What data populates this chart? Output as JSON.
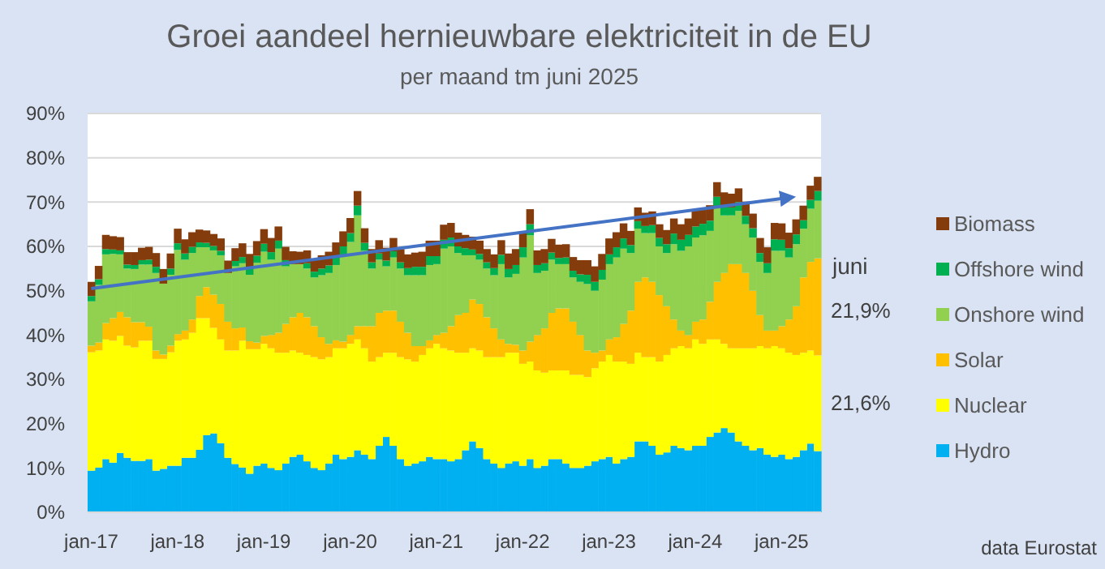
{
  "chart_data": {
    "type": "bar",
    "stacked": true,
    "title": "Groei aandeel hernieuwbare elektriciteit in de EU",
    "subtitle": "per maand tm juni 2025",
    "categories": [
      "jan-17",
      null,
      null,
      null,
      null,
      null,
      null,
      null,
      null,
      null,
      null,
      null,
      "jan-18",
      null,
      null,
      null,
      null,
      null,
      null,
      null,
      null,
      null,
      null,
      null,
      "jan-19",
      null,
      null,
      null,
      null,
      null,
      null,
      null,
      null,
      null,
      null,
      null,
      "jan-20",
      null,
      null,
      null,
      null,
      null,
      null,
      null,
      null,
      null,
      null,
      null,
      "jan-21",
      null,
      null,
      null,
      null,
      null,
      null,
      null,
      null,
      null,
      null,
      null,
      "jan-22",
      null,
      null,
      null,
      null,
      null,
      null,
      null,
      null,
      null,
      null,
      null,
      "jan-23",
      null,
      null,
      null,
      null,
      null,
      null,
      null,
      null,
      null,
      null,
      null,
      "jan-24",
      null,
      null,
      null,
      null,
      null,
      null,
      null,
      null,
      null,
      null,
      null,
      "jan-25",
      null,
      null,
      null,
      null,
      null
    ],
    "series": [
      {
        "name": "Hydro",
        "color": "#00b0f0",
        "values": [
          9.4,
          10.1,
          12,
          11.2,
          13.4,
          12.3,
          11.6,
          11.6,
          12,
          9.4,
          9.8,
          10.5,
          10.5,
          12.3,
          12.3,
          14.1,
          17.4,
          17.8,
          15.6,
          12.3,
          10.9,
          10.1,
          8.7,
          10.5,
          11,
          10,
          9.5,
          11,
          12.5,
          13,
          11.5,
          10,
          9.5,
          11,
          13,
          12,
          12.5,
          14,
          13,
          12,
          15,
          17,
          15,
          12,
          10.5,
          11,
          11.5,
          12.5,
          12,
          12,
          11.5,
          12,
          14,
          16,
          14.5,
          12,
          11,
          10,
          11,
          11.5,
          10.5,
          12,
          10,
          10.5,
          12,
          12,
          11,
          10,
          10,
          10.5,
          11.5,
          12,
          12.5,
          11,
          12,
          12.5,
          16,
          16,
          15,
          13,
          13.5,
          15,
          14.5,
          14,
          15,
          15,
          17,
          18,
          19,
          18,
          16,
          15,
          14,
          14.5,
          13,
          12.5,
          13,
          12,
          12.5,
          14,
          15.5,
          13.8
        ]
      },
      {
        "name": "Nuclear",
        "color": "#ffff00",
        "values": [
          26.7,
          26.4,
          27,
          27.5,
          26.4,
          25.3,
          25.6,
          27.1,
          26.7,
          25.2,
          24.8,
          25.6,
          28.2,
          26.7,
          28.2,
          29.7,
          26.4,
          23.8,
          23.4,
          24.2,
          25.6,
          28.6,
          28.1,
          26.3,
          27,
          27,
          26.5,
          25,
          24,
          23,
          24,
          25,
          25,
          24,
          24,
          25,
          25.5,
          25,
          24,
          22,
          20,
          19,
          21,
          23,
          24,
          23,
          24,
          24.5,
          26,
          25,
          25,
          24,
          22,
          21,
          22,
          23,
          24,
          25,
          25,
          24.5,
          23,
          22,
          22,
          21,
          20,
          20,
          21,
          21,
          21,
          20,
          21,
          22,
          23,
          23,
          22,
          21,
          20,
          19,
          20,
          21,
          22,
          22,
          23,
          23,
          24,
          23,
          22,
          21,
          19,
          19,
          21,
          22,
          23,
          23,
          24,
          25,
          24,
          24,
          23,
          22,
          21,
          21.6
        ]
      },
      {
        "name": "Solar",
        "color": "#ffc000",
        "values": [
          1.5,
          1.8,
          3.7,
          5.1,
          5.4,
          6.4,
          5.7,
          4.2,
          3.2,
          1.9,
          1,
          1.5,
          1.5,
          2,
          3,
          5,
          7,
          7.5,
          8,
          6.5,
          5,
          3,
          1.8,
          1.5,
          1.8,
          3,
          4.5,
          6.5,
          7.5,
          9,
          8.5,
          7,
          5,
          3,
          1.8,
          1.5,
          2,
          3,
          5,
          8,
          10,
          9.5,
          9.5,
          8,
          6,
          3.5,
          2,
          1.8,
          2,
          3.5,
          5.5,
          8.5,
          9,
          11,
          10.5,
          9,
          6.5,
          4,
          2,
          1.8,
          3,
          4.5,
          8,
          10,
          13,
          14,
          14,
          12,
          9,
          6,
          3.5,
          2.5,
          3.5,
          5.5,
          8.5,
          12,
          16,
          18,
          17,
          15,
          11,
          6.5,
          3.5,
          3,
          4,
          5.5,
          8.5,
          13,
          16,
          19,
          19,
          17,
          13,
          7,
          4,
          3.5,
          5,
          7.5,
          11,
          17,
          20,
          21.9
        ]
      },
      {
        "name": "Onshore wind",
        "color": "#92d050",
        "values": [
          10,
          13,
          15.5,
          14.5,
          13,
          11,
          12,
          13,
          14,
          17.5,
          16,
          16,
          19,
          16,
          15,
          11,
          9,
          10,
          11,
          11,
          14,
          14.5,
          15,
          18,
          19,
          17,
          19,
          13,
          12,
          11,
          11,
          11,
          14,
          16,
          17,
          19.5,
          21,
          25,
          17,
          13,
          12,
          10,
          12,
          12,
          13,
          16,
          16,
          17,
          16,
          19,
          18,
          14,
          13,
          10,
          10,
          11,
          12,
          17,
          15,
          16,
          21,
          24,
          14,
          13,
          12,
          10,
          10,
          10,
          12,
          15,
          14,
          16,
          17,
          18,
          17,
          13,
          12,
          10,
          11,
          11,
          12,
          17,
          18,
          20,
          19,
          19,
          16,
          17,
          13,
          11,
          12,
          11,
          12,
          12,
          13,
          18,
          17,
          14,
          14,
          11,
          12,
          13
        ]
      },
      {
        "name": "Offshore wind",
        "color": "#00b050",
        "values": [
          1.2,
          1.3,
          1.2,
          1.0,
          0.9,
          0.9,
          0.9,
          1.0,
          1.1,
          1.4,
          null,
          1.4,
          1.5,
          1.4,
          1.4,
          1.1,
          1.0,
          1.0,
          1.0,
          null,
          1.2,
          1.4,
          1.5,
          1.6,
          1.8,
          1.7,
          1.8,
          1.4,
          null,
          null,
          1.2,
          1.3,
          1.5,
          1.7,
          1.8,
          2.0,
          2.0,
          2.2,
          1.8,
          1.4,
          1.4,
          1.3,
          1.4,
          1.4,
          1.6,
          1.9,
          1.9,
          2.0,
          1.8,
          2.0,
          2.0,
          1.5,
          1.6,
          1.3,
          1.3,
          1.4,
          1.6,
          2.1,
          1.9,
          2.0,
          2.3,
          2.5,
          1.8,
          1.7,
          1.6,
          1.4,
          1.5,
          1.5,
          1.7,
          2.1,
          2.0,
          2.2,
          2.2,
          2.3,
          2.3,
          1.8,
          1.7,
          1.6,
          1.8,
          1.9,
          2.0,
          2.4,
          2.5,
          2.6,
          2.5,
          2.6,
          2.3,
          2.2,
          2.0,
          1.8,
          2.0,
          1.9,
          2.1,
          2.0,
          2.2,
          2.6,
          2.5,
          2.1,
          2.2,
          1.9,
          2.0,
          2.2
        ]
      },
      {
        "name": "Biomass",
        "color": "#843c0c",
        "values": [
          3.2,
          3.0,
          3.2,
          3.0,
          3.0,
          2.8,
          2.9,
          2.8,
          2.9,
          3.1,
          3.3,
          3.4,
          3.3,
          3.2,
          3.3,
          2.9,
          2.8,
          2.7,
          2.8,
          2.8,
          2.9,
          3.1,
          3.2,
          3.3,
          3.3,
          3.2,
          3.2,
          3.0,
          2.9,
          2.8,
          2.9,
          2.9,
          3.0,
          3.1,
          3.3,
          3.4,
          3.4,
          3.3,
          3.3,
          3.0,
          3.0,
          2.9,
          3.0,
          3.0,
          3.1,
          3.2,
          3.4,
          3.5,
          3.5,
          3.4,
          3.3,
          3.1,
          3.0,
          2.9,
          3.0,
          3.0,
          3.1,
          3.3,
          3.5,
          3.6,
          3.6,
          3.4,
          3.3,
          3.2,
          3.1,
          3.0,
          3.0,
          3.1,
          3.2,
          3.3,
          3.5,
          3.6,
          3.6,
          3.4,
          3.4,
          3.2,
          3.1,
          3.0,
          3.1,
          3.1,
          3.2,
          3.4,
          3.5,
          3.7,
          3.7,
          3.5,
          3.5,
          3.3,
          3.2,
          3.1,
          3.1,
          3.2,
          3.3,
          3.4,
          3.6,
          3.7,
          3.7,
          3.5,
          3.4,
          3.3,
          3.2,
          3.2
        ]
      },
      {
        "type": "line",
        "color": "#4472c4",
        "x": [
          "jan-17",
          "jan-25"
        ],
        "values": [
          50.5,
          70.8
        ]
      }
    ],
    "ylim": [
      0,
      90
    ],
    "yticks": [
      {
        "value": 0,
        "label": "0%"
      },
      {
        "value": 10,
        "label": "10%"
      },
      {
        "value": 20,
        "label": "20%"
      },
      {
        "value": 30,
        "label": "30%"
      },
      {
        "value": 40,
        "label": "40%"
      },
      {
        "value": 50,
        "label": "50%"
      },
      {
        "value": 60,
        "label": "60%"
      },
      {
        "value": 70,
        "label": "70%"
      },
      {
        "value": 80,
        "label": "80%"
      },
      {
        "value": 90,
        "label": "90%"
      }
    ],
    "grid": "y",
    "legend": "right",
    "annotations": [
      "juni",
      "21,9%",
      "21,6%",
      "data Eurostat"
    ]
  }
}
